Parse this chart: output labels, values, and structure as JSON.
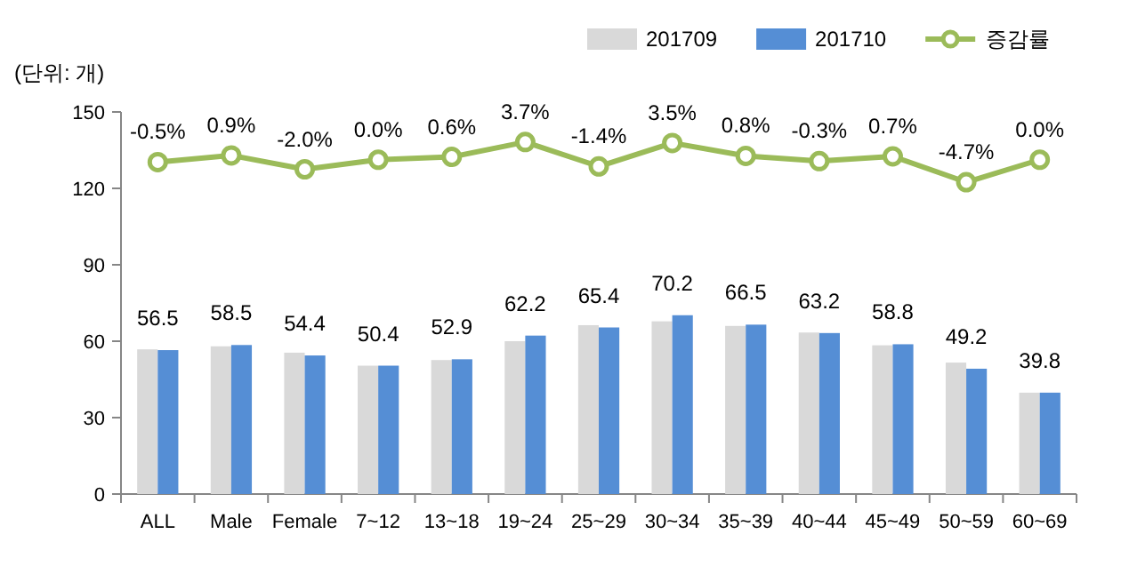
{
  "chart_data": {
    "type": "bar",
    "annotations": [
      "(단위: 개)"
    ],
    "categories": [
      "ALL",
      "Male",
      "Female",
      "7~12",
      "13~18",
      "19~24",
      "25~29",
      "30~34",
      "35~39",
      "40~44",
      "45~49",
      "50~59",
      "60~69"
    ],
    "series": [
      {
        "name": "201709",
        "color": "#d9d9d9",
        "values": [
          56.8,
          58.0,
          55.5,
          50.4,
          52.6,
          60.0,
          66.3,
          67.8,
          66.0,
          63.4,
          58.4,
          51.6,
          39.8
        ]
      },
      {
        "name": "201710",
        "color": "#558ed5",
        "values": [
          56.5,
          58.5,
          54.4,
          50.4,
          52.9,
          62.2,
          65.4,
          70.2,
          66.5,
          63.2,
          58.8,
          49.2,
          39.8
        ],
        "value_labels": [
          "56.5",
          "58.5",
          "54.4",
          "50.4",
          "52.9",
          "62.2",
          "65.4",
          "70.2",
          "66.5",
          "63.2",
          "58.8",
          "49.2",
          "39.8"
        ]
      },
      {
        "name": "증감률",
        "type": "line",
        "axis": "y2",
        "color": "#9bbb59",
        "marker": "circle",
        "values": [
          -0.5,
          0.9,
          -2.0,
          0.0,
          0.6,
          3.7,
          -1.4,
          3.5,
          0.8,
          -0.3,
          0.7,
          -4.7,
          0.0
        ],
        "value_labels": [
          "-0.5%",
          "0.9%",
          "-2.0%",
          "0.0%",
          "0.6%",
          "3.7%",
          "-1.4%",
          "3.5%",
          "0.8%",
          "-0.3%",
          "0.7%",
          "-4.7%",
          "0.0%"
        ]
      }
    ],
    "ylim": [
      0,
      150
    ],
    "yticks": [
      0,
      30,
      60,
      90,
      120,
      150
    ],
    "y2lim": [
      -70,
      10
    ],
    "grid": false,
    "legend": "top right"
  }
}
